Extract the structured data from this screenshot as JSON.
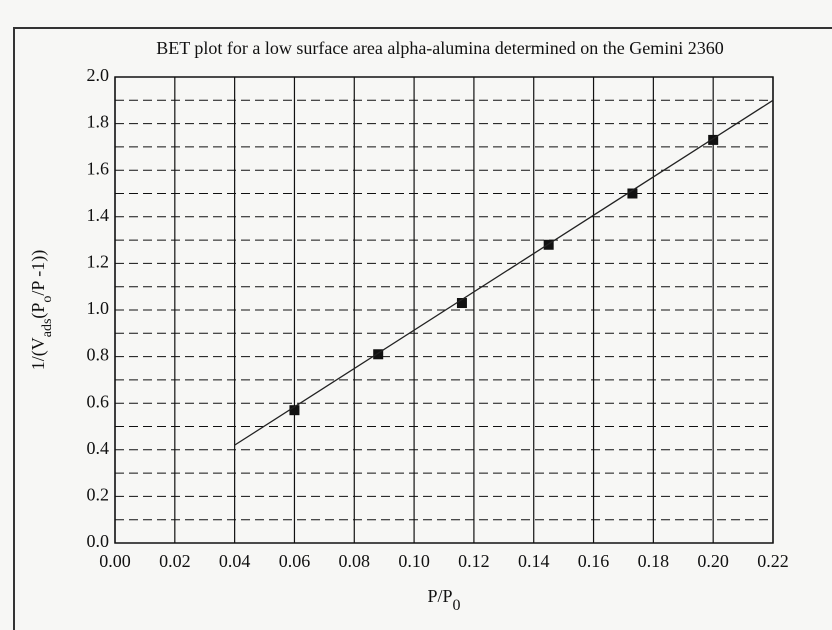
{
  "chart_data": {
    "type": "scatter",
    "title": "BET plot for a low surface area alpha-alumina determined on the Gemini 2360",
    "x_label": [
      "P/P",
      "0"
    ],
    "y_label": [
      "1/(V",
      "ads",
      "(P",
      "o",
      "/P -1))"
    ],
    "series": [
      {
        "x": [
          0.06,
          0.088,
          0.116,
          0.145,
          0.173,
          0.2
        ],
        "values": [
          0.57,
          0.81,
          1.03,
          1.28,
          1.5,
          1.73
        ],
        "color": "#111111",
        "marker": "square"
      },
      {
        "x": [
          0.04,
          0.22
        ],
        "values": [
          0.42,
          1.9
        ],
        "color": "#222222",
        "marker": "line"
      }
    ],
    "xlim": [
      0,
      0.22
    ],
    "ylim": [
      0,
      2
    ],
    "xticks": [
      {
        "value": 0,
        "label": "0.00"
      },
      0.02,
      0.04,
      0.06,
      0.08,
      {
        "value": 0.1,
        "label": "0.10"
      },
      0.12,
      0.14,
      0.16,
      0.18,
      {
        "value": 0.2,
        "label": "0.20"
      },
      0.22
    ],
    "yticks": [
      {
        "value": 0,
        "label": "0.0"
      },
      0.2,
      0.4,
      0.6,
      0.8,
      {
        "value": 1,
        "label": "1.0"
      },
      1.2,
      1.4,
      1.6,
      1.8,
      {
        "value": 2,
        "label": "2.0"
      }
    ],
    "y_minor_grid": [
      0.1,
      0.3,
      0.5,
      0.7,
      0.9,
      1.1,
      1.3,
      1.5,
      1.7,
      1.9
    ],
    "grid": true
  }
}
